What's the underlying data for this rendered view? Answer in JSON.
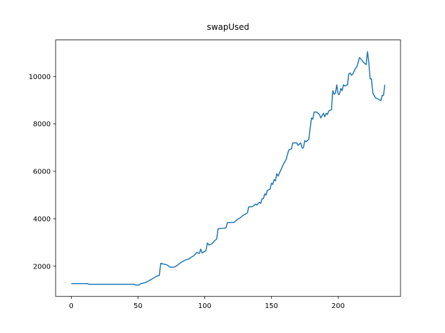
{
  "chart_data": {
    "type": "line",
    "title": "swapUsed",
    "color": "#1f77b4",
    "x": [
      0,
      12,
      13,
      47,
      48,
      51,
      52,
      55,
      58,
      61,
      64,
      66,
      67,
      70,
      72,
      74,
      77,
      79,
      82,
      85,
      88,
      90,
      92,
      94,
      96,
      97,
      98,
      100,
      101,
      102,
      103,
      105,
      107,
      109,
      110,
      114,
      116,
      117,
      122,
      124,
      127,
      129,
      132,
      133,
      136,
      138,
      139,
      141,
      142,
      143,
      144,
      145,
      146,
      147,
      149,
      150,
      151,
      152,
      153,
      154,
      155,
      157,
      159,
      161,
      162,
      163,
      165,
      166,
      169,
      170,
      172,
      173,
      174,
      175,
      176,
      177,
      178,
      180,
      181,
      182,
      184,
      186,
      187,
      188,
      189,
      190,
      191,
      192,
      193,
      195,
      196,
      197,
      198,
      199,
      200,
      201,
      202,
      203,
      204,
      205,
      207,
      208,
      209,
      210,
      211,
      213,
      214,
      216,
      217,
      219,
      221,
      222,
      223,
      224,
      225,
      226,
      227,
      228,
      230,
      232,
      233,
      234,
      235
    ],
    "values": [
      1270,
      1270,
      1240,
      1240,
      1210,
      1210,
      1270,
      1300,
      1380,
      1480,
      1580,
      1620,
      2120,
      2080,
      2050,
      1960,
      1960,
      2020,
      2150,
      2250,
      2310,
      2380,
      2450,
      2580,
      2540,
      2720,
      2560,
      2620,
      2680,
      2980,
      2900,
      2930,
      3050,
      3150,
      3580,
      3600,
      3620,
      3840,
      3850,
      3950,
      4060,
      4150,
      4250,
      4500,
      4520,
      4620,
      4580,
      4700,
      4650,
      4850,
      4850,
      5050,
      5000,
      5200,
      5250,
      5500,
      5450,
      5650,
      5600,
      5900,
      5800,
      6050,
      6300,
      6500,
      6700,
      6900,
      6950,
      7200,
      7200,
      7100,
      7200,
      6980,
      7000,
      7300,
      7250,
      7300,
      7350,
      8250,
      8200,
      8500,
      8500,
      8400,
      8250,
      8350,
      8450,
      8300,
      8450,
      8400,
      8550,
      8600,
      9400,
      9250,
      9300,
      9650,
      9250,
      9250,
      9500,
      9400,
      9650,
      9600,
      9650,
      10100,
      10150,
      10050,
      10100,
      10350,
      10400,
      10800,
      10750,
      10600,
      10500,
      11050,
      10600,
      9900,
      9900,
      9300,
      9200,
      9100,
      9050,
      8980,
      9200,
      9200,
      9650
    ],
    "xlim": [
      -11.75,
      246.75
    ],
    "ylim": [
      729,
      11541
    ],
    "xticks": [
      0,
      50,
      100,
      150,
      200
    ],
    "yticks": [
      2000,
      4000,
      6000,
      8000,
      10000
    ]
  }
}
